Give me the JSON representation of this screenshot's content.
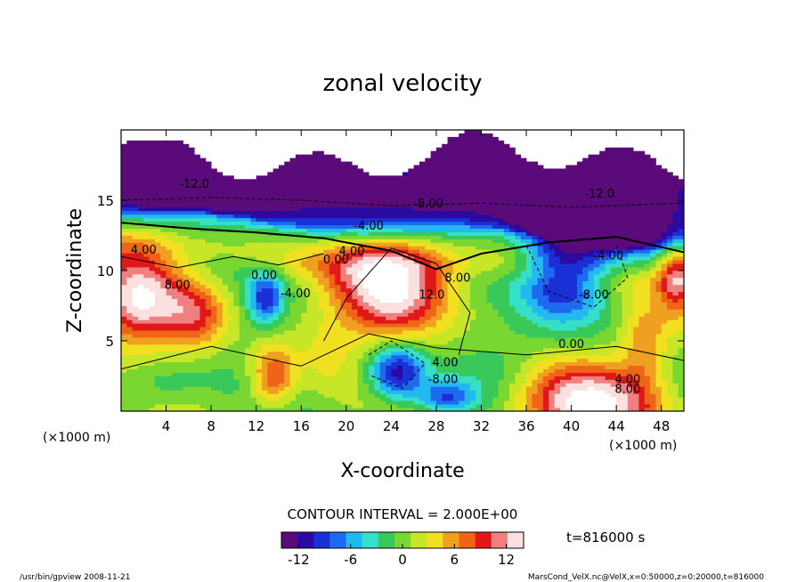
{
  "chart_data": {
    "type": "heatmap",
    "title": "zonal velocity",
    "xlabel": "X-coordinate",
    "ylabel": "Z-coordinate",
    "x_unit": "(×1000 m)",
    "y_unit": "(×1000 m)",
    "xlim": [
      0,
      50
    ],
    "ylim": [
      0,
      20
    ],
    "x_ticks": [
      4,
      8,
      12,
      16,
      20,
      24,
      28,
      32,
      36,
      40,
      44,
      48
    ],
    "y_ticks": [
      5,
      10,
      15
    ],
    "contour_interval_text": "CONTOUR INTERVAL = 2.000E+00",
    "time_text": "t=816000 s",
    "colorbar": {
      "range": [
        -14,
        14
      ],
      "ticks": [
        -12,
        -6,
        0,
        6,
        12
      ],
      "colors": [
        "#5b0a7a",
        "#2a0aa0",
        "#1a2fd6",
        "#1f6bf0",
        "#22b8f0",
        "#36e0c8",
        "#38c95a",
        "#7ad630",
        "#c8e628",
        "#f0e020",
        "#f0a020",
        "#f06418",
        "#e01818",
        "#f08080",
        "#fce0e0"
      ]
    },
    "contour_labels": [
      {
        "text": "-12.0",
        "x": 6.5,
        "z": 15.9
      },
      {
        "text": "-8.00",
        "x": 27.3,
        "z": 14.5
      },
      {
        "text": "-12.0",
        "x": 42.5,
        "z": 15.2
      },
      {
        "text": "-4.00",
        "x": 22.0,
        "z": 12.9
      },
      {
        "text": "4.00",
        "x": 2.0,
        "z": 11.2
      },
      {
        "text": "8.00",
        "x": 5.0,
        "z": 8.7
      },
      {
        "text": "0.00",
        "x": 12.7,
        "z": 9.4
      },
      {
        "text": "-4.00",
        "x": 15.5,
        "z": 8.1
      },
      {
        "text": "0.00",
        "x": 19.1,
        "z": 10.5
      },
      {
        "text": "4.00",
        "x": 20.5,
        "z": 11.1
      },
      {
        "text": "12.0",
        "x": 27.6,
        "z": 8.0
      },
      {
        "text": "8.00",
        "x": 29.9,
        "z": 9.2
      },
      {
        "text": "-4.00",
        "x": 43.3,
        "z": 10.8
      },
      {
        "text": "-8.00",
        "x": 42.0,
        "z": 8.0
      },
      {
        "text": "0.00",
        "x": 40.0,
        "z": 4.5
      },
      {
        "text": "4.00",
        "x": 28.8,
        "z": 3.2
      },
      {
        "text": "-8.00",
        "x": 28.6,
        "z": 2.0
      },
      {
        "text": "4.00",
        "x": 45.0,
        "z": 2.0
      },
      {
        "text": "8.00",
        "x": 45.0,
        "z": 1.3
      }
    ],
    "blobs": [
      {
        "x": 24.0,
        "z": 8.8,
        "sx": 5.0,
        "sz": 3.5,
        "v": 15
      },
      {
        "x": 41.5,
        "z": 0.5,
        "sx": 6.0,
        "sz": 2.8,
        "v": 15
      },
      {
        "x": 1.5,
        "z": 8.0,
        "sx": 3.5,
        "sz": 3.0,
        "v": 14
      },
      {
        "x": 6.5,
        "z": 6.8,
        "sx": 3.0,
        "sz": 2.5,
        "v": 9
      },
      {
        "x": 13.5,
        "z": 2.5,
        "sx": 2.0,
        "sz": 2.2,
        "v": 9
      },
      {
        "x": 49.5,
        "z": 9.5,
        "sx": 1.8,
        "sz": 3.0,
        "v": 11
      },
      {
        "x": 39.5,
        "z": 10.0,
        "sx": 4.0,
        "sz": 3.5,
        "v": -14
      },
      {
        "x": 24.5,
        "z": 2.8,
        "sx": 2.5,
        "sz": 2.0,
        "v": -12
      },
      {
        "x": 29.0,
        "z": 1.0,
        "sx": 2.5,
        "sz": 1.2,
        "v": -8
      },
      {
        "x": 12.8,
        "z": 8.0,
        "sx": 1.6,
        "sz": 1.8,
        "v": -9
      },
      {
        "x": 3.5,
        "z": 2.0,
        "sx": 4.0,
        "sz": 1.5,
        "v": -3
      },
      {
        "x": 34.0,
        "z": 3.0,
        "sx": 3.5,
        "sz": 2.0,
        "v": -2
      },
      {
        "x": 18.0,
        "z": 4.0,
        "sx": 2.5,
        "sz": 3.0,
        "v": 2
      },
      {
        "x": 46.5,
        "z": 5.0,
        "sx": 2.0,
        "sz": 3.0,
        "v": 6
      }
    ]
  },
  "footer": {
    "left": "/usr/bin/gpview   2008-11-21",
    "right": "MarsCond_VelX.nc@VelX,x=0:50000,z=0:20000,t=816000"
  }
}
